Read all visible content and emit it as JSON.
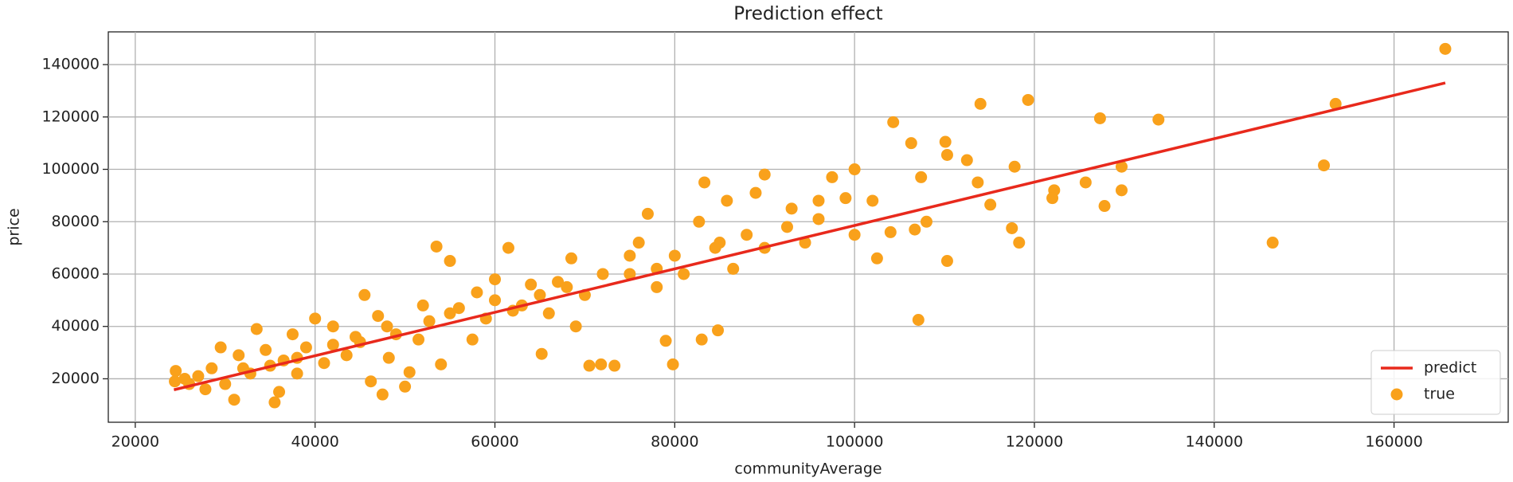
{
  "chart_data": {
    "type": "scatter",
    "title": "Prediction effect",
    "x_label": "communityAverage",
    "y_label": "price",
    "xlim": [
      17000,
      172700
    ],
    "ylim": [
      3400,
      152500
    ],
    "xticks": [
      20000,
      40000,
      60000,
      80000,
      100000,
      120000,
      140000,
      160000
    ],
    "yticks": [
      20000,
      40000,
      60000,
      80000,
      100000,
      120000,
      140000
    ],
    "grid": true,
    "legend": "lower right",
    "series": [
      {
        "name": "predict",
        "type": "line",
        "color": "#e8291c",
        "x": [
          24300,
          165700
        ],
        "values": [
          15800,
          133000
        ]
      },
      {
        "name": "true",
        "type": "scatter",
        "color": "#f9a11b",
        "x": [
          165700,
          153500,
          152200,
          146500,
          133800,
          127300,
          119300,
          114000,
          104300,
          107100,
          110300,
          129700,
          129700,
          127800,
          125700,
          122200,
          122000,
          118300,
          117500,
          117800,
          115100,
          113700,
          112500,
          110300,
          110100,
          106300,
          107400,
          108000,
          106700,
          104000,
          102500,
          100000,
          99000,
          97500,
          96000,
          94500,
          92500,
          90000,
          89000,
          88000,
          86500,
          85800,
          84500,
          83300,
          82700,
          83000,
          84800,
          81000,
          80000,
          79800,
          79000,
          78000,
          77000,
          76000,
          75000,
          73300,
          71800,
          70500,
          70000,
          69000,
          68500,
          67000,
          66000,
          65200,
          64000,
          63000,
          61500,
          60000,
          59000,
          58000,
          57500,
          56000,
          55000,
          54000,
          53500,
          52700,
          51500,
          50500,
          50000,
          49000,
          48200,
          47000,
          47500,
          46200,
          45500,
          44500,
          43500,
          42000,
          41000,
          40000,
          39000,
          38000,
          37500,
          36500,
          36000,
          35500,
          34500,
          33500,
          32800,
          31500,
          31000,
          30000,
          29500,
          28500,
          27800,
          27000,
          26000,
          24500,
          24400,
          25500,
          60000,
          62000,
          65000,
          68000,
          72000,
          75000,
          78000,
          85000,
          90000,
          93000,
          96000,
          100000,
          102000,
          55000,
          52000,
          48000,
          45000,
          42000,
          38000,
          35000,
          32000
        ],
        "values": [
          146000,
          125000,
          101500,
          72000,
          119000,
          119500,
          126500,
          125000,
          118000,
          42500,
          65000,
          101000,
          92000,
          86000,
          95000,
          92000,
          89000,
          72000,
          77500,
          101000,
          86500,
          95000,
          103500,
          105500,
          110500,
          110000,
          97000,
          80000,
          77000,
          76000,
          66000,
          100000,
          89000,
          97000,
          81000,
          72000,
          78000,
          98000,
          91000,
          75000,
          62000,
          88000,
          70000,
          95000,
          80000,
          35000,
          38500,
          60000,
          67000,
          25500,
          34500,
          55000,
          83000,
          72000,
          60000,
          25000,
          25500,
          25000,
          52000,
          40000,
          66000,
          57000,
          45000,
          29500,
          56000,
          48000,
          70000,
          50000,
          43000,
          53000,
          35000,
          47000,
          65000,
          25500,
          70500,
          42000,
          35000,
          22500,
          17000,
          37000,
          28000,
          44000,
          14000,
          19000,
          52000,
          36000,
          29000,
          40000,
          26000,
          43000,
          32000,
          22000,
          37000,
          27000,
          15000,
          11000,
          31000,
          39000,
          22000,
          29000,
          12000,
          18000,
          32000,
          24000,
          16000,
          21000,
          18000,
          23000,
          19000,
          20000,
          58000,
          46000,
          52000,
          55000,
          60000,
          67000,
          62000,
          72000,
          70000,
          85000,
          88000,
          75000,
          88000,
          45000,
          48000,
          40000,
          34000,
          33000,
          28000,
          25000,
          24000
        ]
      }
    ]
  }
}
